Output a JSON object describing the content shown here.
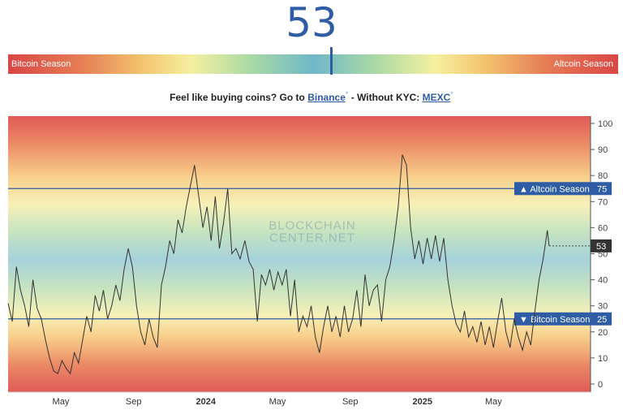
{
  "header": {
    "value": "53"
  },
  "season_bar": {
    "left_label": "Bitcoin Season",
    "right_label": "Altcoin Season",
    "marker_value": 53
  },
  "promo": {
    "prefix": "Feel like buying coins? Go to",
    "binance": "Binance",
    "asterisk": "*",
    "middle": "- Without KYC:",
    "mexc": "MEXC"
  },
  "watermark": {
    "line1": "BLOCKCHAIN",
    "line2": "CENTER.NET"
  },
  "colors": {
    "accent": "#2e5da6",
    "badge": "#2e5da6",
    "current_badge": "#333333",
    "line": "#333333"
  },
  "chart_data": {
    "type": "line",
    "ylim": [
      0,
      100
    ],
    "yticks": [
      0,
      10,
      20,
      25,
      30,
      40,
      50,
      60,
      70,
      75,
      80,
      90,
      100
    ],
    "xlim": [
      "2023-02-01",
      "2025-10-12"
    ],
    "xticks": [
      {
        "label": "May",
        "date": "2023-05-01"
      },
      {
        "label": "Sep",
        "date": "2023-09-01"
      },
      {
        "label": "2024",
        "date": "2024-01-01",
        "bold": true
      },
      {
        "label": "May",
        "date": "2024-05-01"
      },
      {
        "label": "Sep",
        "date": "2024-09-01"
      },
      {
        "label": "2025",
        "date": "2025-01-01",
        "bold": true
      },
      {
        "label": "May",
        "date": "2025-05-01"
      }
    ],
    "thresholds": [
      {
        "label": "Altcoin Season",
        "value": 75,
        "symbol": "▲"
      },
      {
        "label": "Bitcoin Season",
        "value": 25,
        "symbol": "▼"
      }
    ],
    "current": {
      "value": 53,
      "label": "53"
    },
    "grid": false,
    "series": [
      {
        "points": [
          [
            "2023-02-01",
            31
          ],
          [
            "2023-02-08",
            24
          ],
          [
            "2023-02-15",
            45
          ],
          [
            "2023-02-22",
            36
          ],
          [
            "2023-03-01",
            30
          ],
          [
            "2023-03-08",
            22
          ],
          [
            "2023-03-15",
            40
          ],
          [
            "2023-03-22",
            29
          ],
          [
            "2023-03-29",
            25
          ],
          [
            "2023-04-05",
            17
          ],
          [
            "2023-04-12",
            10
          ],
          [
            "2023-04-19",
            5
          ],
          [
            "2023-04-26",
            4
          ],
          [
            "2023-05-03",
            9
          ],
          [
            "2023-05-10",
            6
          ],
          [
            "2023-05-17",
            4
          ],
          [
            "2023-05-24",
            12
          ],
          [
            "2023-05-31",
            8
          ],
          [
            "2023-06-07",
            17
          ],
          [
            "2023-06-14",
            26
          ],
          [
            "2023-06-21",
            20
          ],
          [
            "2023-06-28",
            34
          ],
          [
            "2023-07-05",
            28
          ],
          [
            "2023-07-12",
            36
          ],
          [
            "2023-07-19",
            25
          ],
          [
            "2023-07-26",
            30
          ],
          [
            "2023-08-02",
            38
          ],
          [
            "2023-08-09",
            32
          ],
          [
            "2023-08-16",
            44
          ],
          [
            "2023-08-23",
            52
          ],
          [
            "2023-08-30",
            45
          ],
          [
            "2023-09-06",
            30
          ],
          [
            "2023-09-13",
            20
          ],
          [
            "2023-09-20",
            15
          ],
          [
            "2023-09-27",
            25
          ],
          [
            "2023-10-04",
            18
          ],
          [
            "2023-10-11",
            14
          ],
          [
            "2023-10-18",
            38
          ],
          [
            "2023-10-25",
            45
          ],
          [
            "2023-11-01",
            55
          ],
          [
            "2023-11-08",
            50
          ],
          [
            "2023-11-15",
            63
          ],
          [
            "2023-11-22",
            58
          ],
          [
            "2023-11-29",
            68
          ],
          [
            "2023-12-06",
            76
          ],
          [
            "2023-12-13",
            84
          ],
          [
            "2023-12-20",
            72
          ],
          [
            "2023-12-27",
            60
          ],
          [
            "2024-01-03",
            68
          ],
          [
            "2024-01-10",
            55
          ],
          [
            "2024-01-17",
            72
          ],
          [
            "2024-01-24",
            52
          ],
          [
            "2024-01-31",
            62
          ],
          [
            "2024-02-07",
            75
          ],
          [
            "2024-02-14",
            50
          ],
          [
            "2024-02-21",
            52
          ],
          [
            "2024-02-28",
            48
          ],
          [
            "2024-03-07",
            55
          ],
          [
            "2024-03-14",
            47
          ],
          [
            "2024-03-21",
            44
          ],
          [
            "2024-03-28",
            24
          ],
          [
            "2024-04-04",
            42
          ],
          [
            "2024-04-11",
            38
          ],
          [
            "2024-04-18",
            44
          ],
          [
            "2024-04-25",
            36
          ],
          [
            "2024-05-02",
            43
          ],
          [
            "2024-05-09",
            38
          ],
          [
            "2024-05-16",
            44
          ],
          [
            "2024-05-23",
            26
          ],
          [
            "2024-05-30",
            40
          ],
          [
            "2024-06-06",
            20
          ],
          [
            "2024-06-13",
            26
          ],
          [
            "2024-06-20",
            22
          ],
          [
            "2024-06-27",
            30
          ],
          [
            "2024-07-04",
            18
          ],
          [
            "2024-07-11",
            12
          ],
          [
            "2024-07-18",
            22
          ],
          [
            "2024-07-25",
            30
          ],
          [
            "2024-08-01",
            20
          ],
          [
            "2024-08-08",
            26
          ],
          [
            "2024-08-15",
            18
          ],
          [
            "2024-08-22",
            30
          ],
          [
            "2024-08-29",
            20
          ],
          [
            "2024-09-05",
            25
          ],
          [
            "2024-09-12",
            36
          ],
          [
            "2024-09-19",
            22
          ],
          [
            "2024-09-26",
            42
          ],
          [
            "2024-10-03",
            30
          ],
          [
            "2024-10-10",
            36
          ],
          [
            "2024-10-17",
            38
          ],
          [
            "2024-10-24",
            24
          ],
          [
            "2024-10-31",
            40
          ],
          [
            "2024-11-07",
            45
          ],
          [
            "2024-11-14",
            55
          ],
          [
            "2024-11-21",
            68
          ],
          [
            "2024-11-28",
            88
          ],
          [
            "2024-12-05",
            84
          ],
          [
            "2024-12-12",
            60
          ],
          [
            "2024-12-19",
            48
          ],
          [
            "2024-12-26",
            55
          ],
          [
            "2025-01-02",
            46
          ],
          [
            "2025-01-09",
            56
          ],
          [
            "2025-01-16",
            48
          ],
          [
            "2025-01-23",
            57
          ],
          [
            "2025-01-30",
            47
          ],
          [
            "2025-02-06",
            56
          ],
          [
            "2025-02-13",
            40
          ],
          [
            "2025-02-20",
            30
          ],
          [
            "2025-02-27",
            23
          ],
          [
            "2025-03-06",
            20
          ],
          [
            "2025-03-13",
            28
          ],
          [
            "2025-03-20",
            18
          ],
          [
            "2025-03-27",
            22
          ],
          [
            "2025-04-03",
            16
          ],
          [
            "2025-04-10",
            24
          ],
          [
            "2025-04-17",
            15
          ],
          [
            "2025-04-24",
            22
          ],
          [
            "2025-05-01",
            14
          ],
          [
            "2025-05-08",
            24
          ],
          [
            "2025-05-15",
            33
          ],
          [
            "2025-05-22",
            20
          ],
          [
            "2025-05-29",
            14
          ],
          [
            "2025-06-05",
            25
          ],
          [
            "2025-06-12",
            18
          ],
          [
            "2025-06-19",
            13
          ],
          [
            "2025-06-26",
            20
          ],
          [
            "2025-07-03",
            15
          ],
          [
            "2025-07-10",
            28
          ],
          [
            "2025-07-17",
            40
          ],
          [
            "2025-07-24",
            48
          ],
          [
            "2025-07-31",
            59
          ],
          [
            "2025-08-03",
            53
          ]
        ]
      }
    ]
  }
}
